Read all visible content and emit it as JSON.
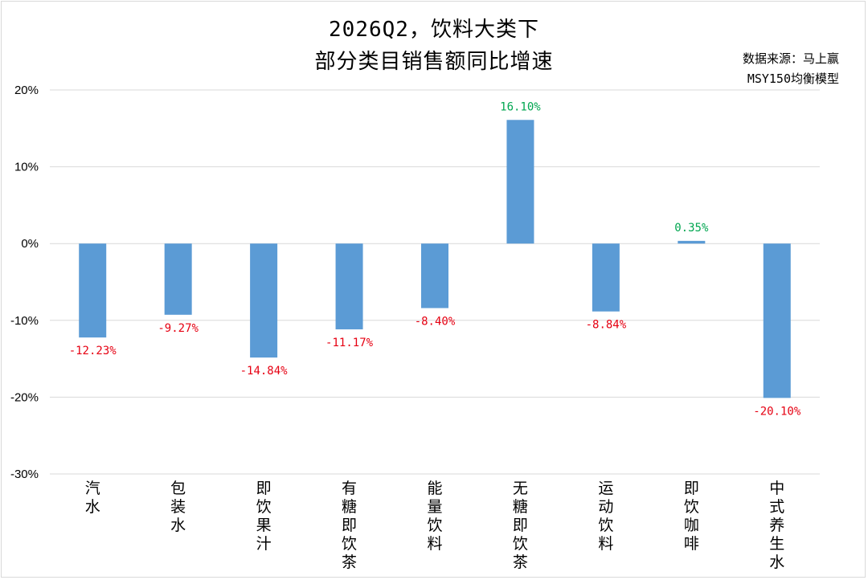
{
  "header": {
    "title_line1": "2026Q2，饮料大类下",
    "title_line2": "部分类目销售额同比增速",
    "source_line1": "数据来源：马上赢",
    "source_line2": "MSY150均衡模型"
  },
  "chart_data": {
    "type": "bar",
    "title": "2026Q2，饮料大类下部分类目销售额同比增速",
    "categories": [
      "汽水",
      "包装水",
      "即饮果汁",
      "有糖即饮茶",
      "能量饮料",
      "无糖即饮茶",
      "运动饮料",
      "即饮咖啡",
      "中式养生水"
    ],
    "values": [
      -12.23,
      -9.27,
      -14.84,
      -11.17,
      -8.4,
      16.1,
      -8.84,
      0.35,
      -20.1
    ],
    "data_labels": [
      "-12.23%",
      "-9.27%",
      "-14.84%",
      "-11.17%",
      "-8.40%",
      "16.10%",
      "-8.84%",
      "0.35%",
      "-20.10%"
    ],
    "y_ticks": [
      {
        "value": 20,
        "label": "20%"
      },
      {
        "value": 10,
        "label": "10%"
      },
      {
        "value": 0,
        "label": "0%"
      },
      {
        "value": -10,
        "label": "-10%"
      },
      {
        "value": -20,
        "label": "-20%"
      },
      {
        "value": -30,
        "label": "-30%"
      }
    ],
    "ylim": [
      -30,
      20
    ],
    "grid": true,
    "legend": "none",
    "colors": {
      "bar": "#5b9bd5",
      "positive_label": "#00a650",
      "negative_label": "#e60012",
      "grid": "#d9d9d9"
    }
  }
}
